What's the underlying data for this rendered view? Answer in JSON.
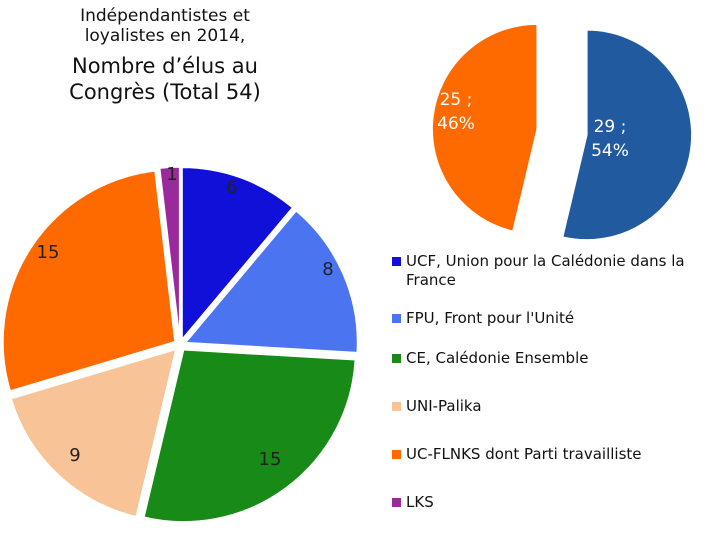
{
  "title": {
    "line1": "Indépendantistes et loyalistes en 2014,",
    "line2": "Nombre d’élus au Congrès (Total 54)"
  },
  "chart_data": [
    {
      "type": "pie",
      "name": "elus-par-parti",
      "exploded": true,
      "slices": [
        {
          "key": "ucf",
          "label": "UCF, Union pour la Caledonie dans la France",
          "legend": "UCF, Union pour la Calédonie dans la France",
          "value": 6,
          "display": "6",
          "color": "#1010d8"
        },
        {
          "key": "fpu",
          "label": "FPU, Front pour l'Unité",
          "legend": "FPU, Front pour l'Unité",
          "value": 8,
          "display": "8",
          "color": "#4a74f0"
        },
        {
          "key": "ce",
          "label": "CE, Calédonie Ensemble",
          "legend": "CE, Calédonie Ensemble",
          "value": 15,
          "display": "15",
          "color": "#178a17"
        },
        {
          "key": "palika",
          "label": "UNI-Palika",
          "legend": "UNI-Palika",
          "value": 9,
          "display": "9",
          "color": "#f7c397"
        },
        {
          "key": "ucflnks",
          "label": "UC-FLNKS dont Parti travailliste",
          "legend": "UC-FLNKS dont Parti travailliste",
          "value": 15,
          "display": "15",
          "color": "#ff6a00"
        },
        {
          "key": "lks",
          "label": "LKS",
          "legend": "LKS",
          "value": 1,
          "display": "1",
          "color": "#9a2a9c"
        }
      ]
    },
    {
      "type": "pie",
      "name": "independantistes-loyalistes",
      "exploded": true,
      "slices": [
        {
          "key": "loyalistes",
          "value": 29,
          "display": "29 ; 54%",
          "label_line1": "29 ;",
          "label_line2": "54%",
          "color": "#225aa0"
        },
        {
          "key": "independantistes",
          "value": 25,
          "display": "25 ; 46%",
          "label_line1": "25 ;",
          "label_line2": "46%",
          "color": "#ff6a00"
        }
      ]
    }
  ]
}
